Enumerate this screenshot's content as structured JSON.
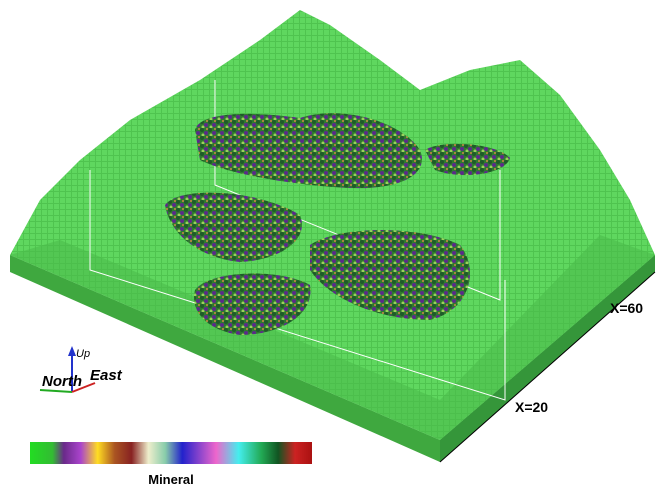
{
  "axes_labels": {
    "up": "Up",
    "north": "North",
    "east": "East"
  },
  "section_labels": [
    "X=60",
    "X=20"
  ],
  "legend": {
    "title": "Mineral"
  }
}
